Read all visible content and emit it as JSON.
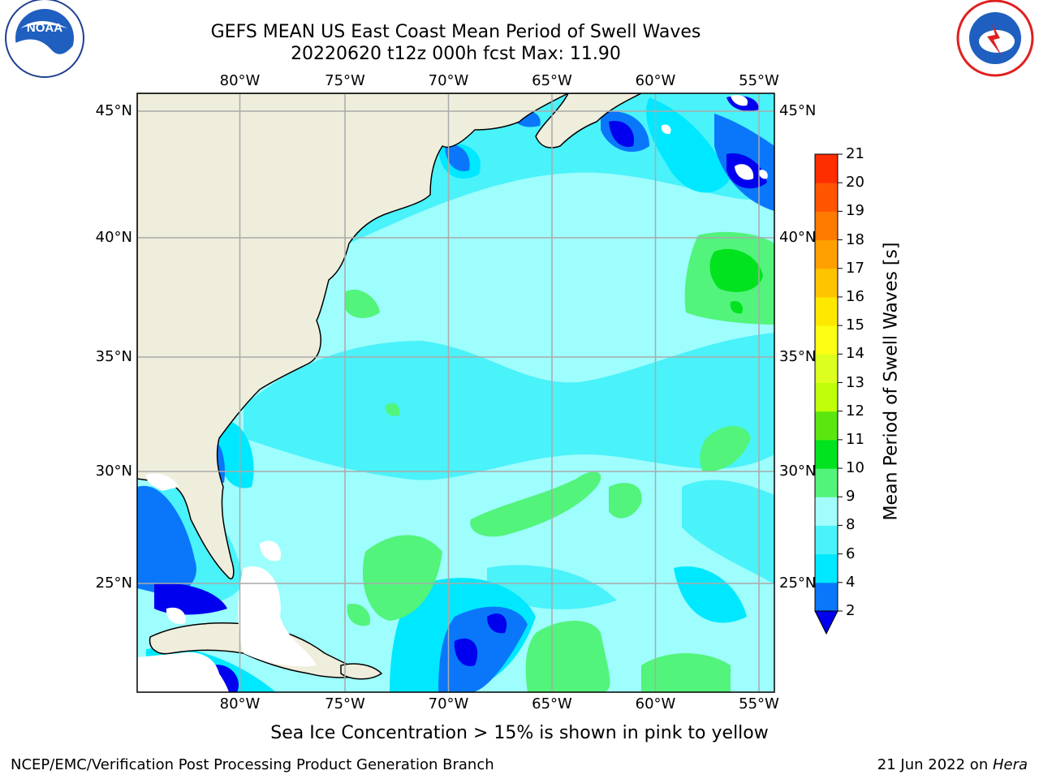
{
  "title": {
    "line1": "GEFS MEAN US East Coast Mean Period of Swell Waves",
    "line2": "20220620 t12z 000h fcst   Max: 11.90"
  },
  "map": {
    "lon_range": [
      -85,
      -54
    ],
    "lat_range": [
      20.5,
      46
    ],
    "lon_ticks": [
      "80°W",
      "75°W",
      "70°W",
      "65°W",
      "60°W",
      "55°W"
    ],
    "lat_ticks": [
      "45°N",
      "40°N",
      "35°N",
      "30°N",
      "25°N"
    ],
    "colors": {
      "land": "#efeedd",
      "ocean_base": "#9efdfd",
      "grid": "#aaaaaa",
      "coast": "#000000"
    }
  },
  "colorbar": {
    "title": "Mean Period of Swell Waves [s]",
    "tick_labels": [
      "2",
      "4",
      "6",
      "8",
      "9",
      "10",
      "11",
      "12",
      "13",
      "14",
      "15",
      "16",
      "17",
      "18",
      "19",
      "20",
      "21"
    ],
    "colors": [
      "#0a77fb",
      "#00e8ff",
      "#4af2fa",
      "#a2fcfc",
      "#52f47b",
      "#00e31e",
      "#5be610",
      "#bfff08",
      "#ddff20",
      "#fcff14",
      "#ffe800",
      "#ffc400",
      "#ffa000",
      "#ff7a00",
      "#ff5500",
      "#ff2e00",
      "#ff0000"
    ],
    "under_color": "#0000ee"
  },
  "chart_data": {
    "type": "heatmap",
    "title": "GEFS MEAN US East Coast Mean Period of Swell Waves",
    "subtitle": "20220620 t12z 000h fcst   Max: 11.90",
    "max": 11.9,
    "units": "s",
    "colorbar_label": "Mean Period of Swell Waves [s]"
  },
  "caption": "Sea Ice Concentration > 15% is shown in pink to yellow",
  "footer": {
    "left": "NCEP/EMC/Verification Post Processing Product Generation Branch",
    "date": "21 Jun 2022 on ",
    "machine": "Hera"
  },
  "logos": {
    "left_org": "NOAA",
    "right_org": "NATIONAL WEATHER SERVICE"
  }
}
